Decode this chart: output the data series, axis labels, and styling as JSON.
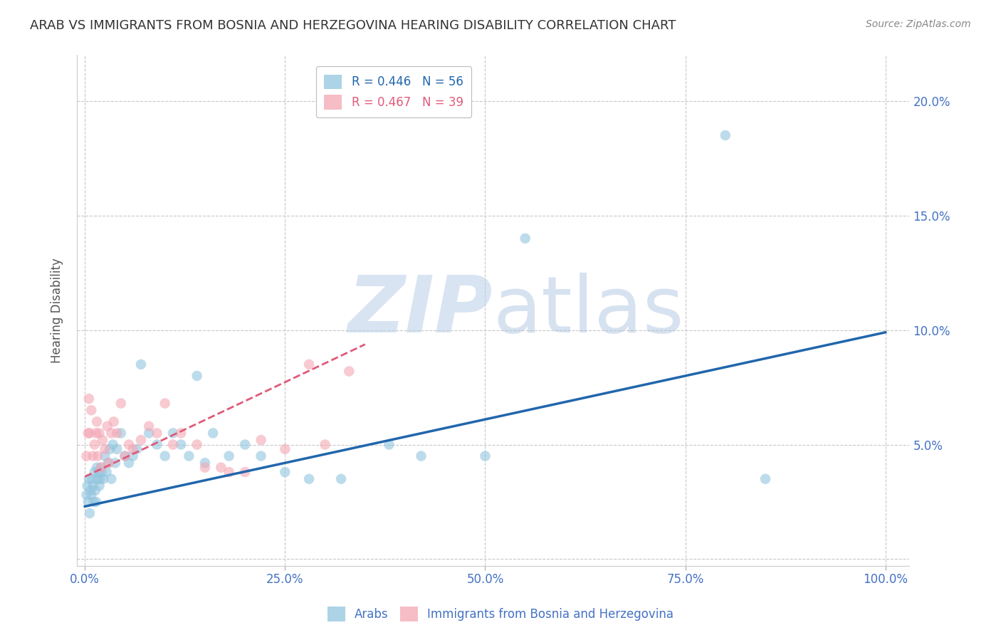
{
  "title": "ARAB VS IMMIGRANTS FROM BOSNIA AND HERZEGOVINA HEARING DISABILITY CORRELATION CHART",
  "source": "Source: ZipAtlas.com",
  "ylabel": "Hearing Disability",
  "xlim": [
    -1,
    103
  ],
  "ylim": [
    -0.3,
    22
  ],
  "blue_color": "#92c5de",
  "pink_color": "#f4a7b4",
  "blue_line_color": "#2166ac",
  "pink_line_color": "#e05a7a",
  "tick_label_color": "#4472c4",
  "grid_color": "#c8c8c8",
  "background_color": "#ffffff",
  "blue_intercept": 2.3,
  "blue_slope": 0.076,
  "pink_intercept": 3.6,
  "pink_slope": 0.165,
  "pink_line_xmax": 35,
  "arab_x": [
    0.2,
    0.3,
    0.4,
    0.5,
    0.6,
    0.7,
    0.8,
    0.9,
    1.0,
    1.1,
    1.2,
    1.3,
    1.4,
    1.5,
    1.6,
    1.7,
    1.8,
    1.9,
    2.0,
    2.1,
    2.3,
    2.5,
    2.7,
    2.9,
    3.1,
    3.3,
    3.5,
    3.8,
    4.0,
    4.5,
    5.0,
    5.5,
    6.0,
    6.5,
    7.0,
    8.0,
    9.0,
    10.0,
    11.0,
    12.0,
    13.0,
    14.0,
    15.0,
    16.0,
    18.0,
    20.0,
    22.0,
    25.0,
    28.0,
    32.0,
    38.0,
    42.0,
    50.0,
    55.0,
    80.0,
    85.0
  ],
  "arab_y": [
    2.8,
    3.2,
    2.5,
    3.5,
    2.0,
    3.0,
    2.8,
    3.5,
    3.2,
    2.5,
    3.8,
    3.0,
    2.5,
    4.0,
    3.5,
    3.8,
    3.2,
    3.5,
    4.0,
    3.8,
    3.5,
    4.5,
    3.8,
    4.2,
    4.8,
    3.5,
    5.0,
    4.2,
    4.8,
    5.5,
    4.5,
    4.2,
    4.5,
    4.8,
    8.5,
    5.5,
    5.0,
    4.5,
    5.5,
    5.0,
    4.5,
    8.0,
    4.2,
    5.5,
    4.5,
    5.0,
    4.5,
    3.8,
    3.5,
    3.5,
    5.0,
    4.5,
    4.5,
    14.0,
    18.5,
    3.5
  ],
  "bh_x": [
    0.2,
    0.4,
    0.5,
    0.6,
    0.8,
    1.0,
    1.2,
    1.4,
    1.5,
    1.6,
    1.8,
    2.0,
    2.2,
    2.5,
    2.8,
    3.0,
    3.3,
    3.6,
    4.0,
    4.5,
    5.0,
    5.5,
    6.0,
    7.0,
    8.0,
    9.0,
    10.0,
    11.0,
    12.0,
    14.0,
    15.0,
    17.0,
    18.0,
    20.0,
    22.0,
    25.0,
    28.0,
    30.0,
    33.0
  ],
  "bh_y": [
    4.5,
    5.5,
    7.0,
    5.5,
    6.5,
    4.5,
    5.0,
    5.5,
    6.0,
    4.5,
    5.5,
    4.0,
    5.2,
    4.8,
    5.8,
    4.2,
    5.5,
    6.0,
    5.5,
    6.8,
    4.5,
    5.0,
    4.8,
    5.2,
    5.8,
    5.5,
    6.8,
    5.0,
    5.5,
    5.0,
    4.0,
    4.0,
    3.8,
    3.8,
    5.2,
    4.8,
    8.5,
    5.0,
    8.2
  ]
}
